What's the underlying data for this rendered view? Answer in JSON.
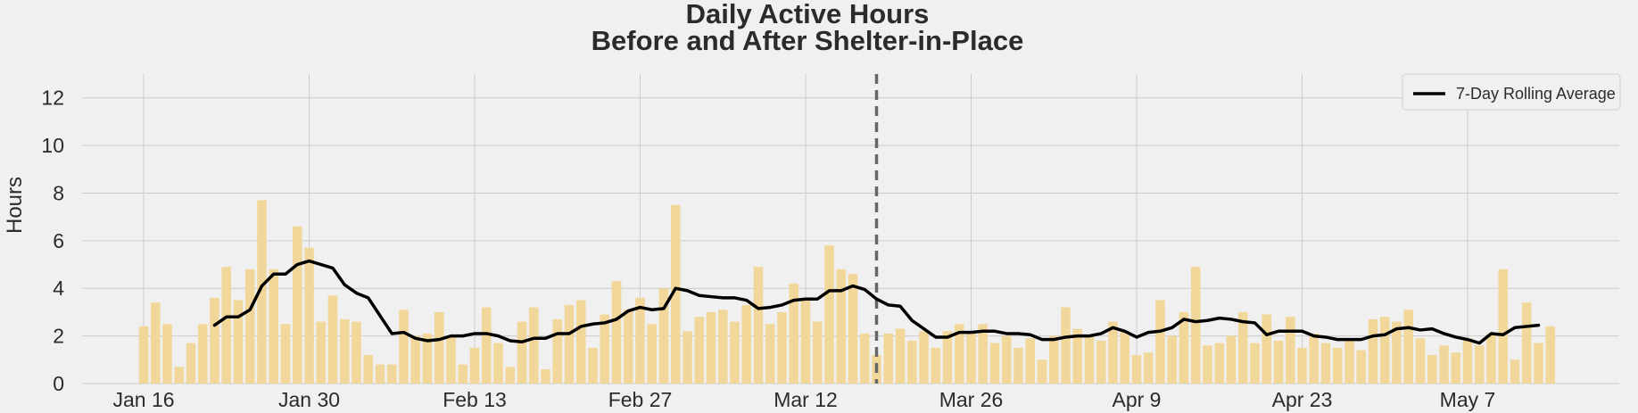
{
  "chart_data": {
    "type": "bar",
    "title": [
      "Daily Active Hours",
      "Before and After Shelter-in-Place"
    ],
    "xlabel": "",
    "ylabel": "Hours",
    "ylim": [
      0,
      13
    ],
    "yticks": [
      0,
      2,
      4,
      6,
      8,
      10,
      12
    ],
    "start_date": "Jan 16",
    "xtick_labels": [
      "Jan 16",
      "Jan 30",
      "Feb 13",
      "Feb 27",
      "Mar 12",
      "Mar 26",
      "Apr 9",
      "Apr 23",
      "May 7"
    ],
    "xtick_day_index": [
      0,
      14,
      28,
      42,
      56,
      70,
      84,
      98,
      112
    ],
    "grid": true,
    "legend_position": "top-right",
    "marker_line_date": "Mar 18",
    "series": [
      {
        "kind": "bar",
        "color": "#f2d79a",
        "values": [
          2.4,
          3.4,
          2.5,
          0.7,
          1.7,
          2.5,
          3.6,
          4.9,
          3.5,
          4.8,
          7.7,
          4.8,
          2.5,
          6.6,
          5.7,
          2.6,
          3.7,
          2.7,
          2.6,
          1.2,
          0.8,
          0.8,
          3.1,
          2.0,
          2.1,
          3.0,
          2.0,
          0.8,
          1.5,
          3.2,
          1.7,
          0.7,
          2.6,
          3.2,
          0.6,
          2.7,
          3.3,
          3.5,
          1.5,
          2.9,
          4.3,
          3.1,
          3.6,
          2.5,
          4.0,
          7.5,
          2.2,
          2.8,
          3.0,
          3.1,
          2.6,
          3.3,
          4.9,
          2.5,
          3.0,
          4.2,
          3.6,
          2.6,
          5.8,
          4.8,
          4.6,
          2.1,
          1.2,
          2.1,
          2.3,
          1.8,
          2.2,
          1.5,
          2.2,
          2.5,
          2.2,
          2.5,
          1.7,
          2.0,
          1.5,
          1.9,
          1.0,
          2.0,
          3.2,
          2.3,
          2.0,
          1.8,
          2.6,
          2.2,
          1.2,
          1.3,
          3.5,
          2.0,
          3.0,
          4.9,
          1.6,
          1.7,
          2.0,
          3.0,
          1.7,
          2.9,
          1.8,
          2.8,
          1.5,
          2.1,
          1.7,
          1.5,
          1.8,
          1.4,
          2.7,
          2.8,
          2.6,
          3.1,
          1.9,
          1.2,
          1.6,
          1.3,
          1.9,
          1.6,
          2.1,
          4.8,
          1.0,
          3.4,
          1.7,
          2.4
        ]
      },
      {
        "kind": "line",
        "name": "7-Day Rolling Average",
        "color": "#000000",
        "start_index": 6,
        "values": [
          2.45,
          2.8,
          2.8,
          3.1,
          4.1,
          4.6,
          4.6,
          5.0,
          5.15,
          5.0,
          4.85,
          4.15,
          3.8,
          3.6,
          2.85,
          2.1,
          2.15,
          1.9,
          1.8,
          1.85,
          2.0,
          2.0,
          2.1,
          2.1,
          2.0,
          1.8,
          1.75,
          1.9,
          1.9,
          2.1,
          2.1,
          2.4,
          2.5,
          2.55,
          2.7,
          3.05,
          3.2,
          3.1,
          3.15,
          4.0,
          3.9,
          3.7,
          3.65,
          3.6,
          3.6,
          3.5,
          3.15,
          3.2,
          3.3,
          3.5,
          3.55,
          3.55,
          3.9,
          3.9,
          4.1,
          3.95,
          3.55,
          3.3,
          3.25,
          2.65,
          2.3,
          1.95,
          1.95,
          2.15,
          2.15,
          2.2,
          2.2,
          2.1,
          2.1,
          2.05,
          1.85,
          1.85,
          1.95,
          2.0,
          2.0,
          2.1,
          2.35,
          2.2,
          1.95,
          2.15,
          2.2,
          2.35,
          2.7,
          2.6,
          2.65,
          2.75,
          2.7,
          2.6,
          2.55,
          2.05,
          2.2,
          2.2,
          2.2,
          2.0,
          1.95,
          1.85,
          1.85,
          1.85,
          2.0,
          2.05,
          2.3,
          2.35,
          2.25,
          2.3,
          2.1,
          1.95,
          1.85,
          1.7,
          2.1,
          2.05,
          2.35,
          2.4,
          2.45
        ]
      }
    ]
  }
}
